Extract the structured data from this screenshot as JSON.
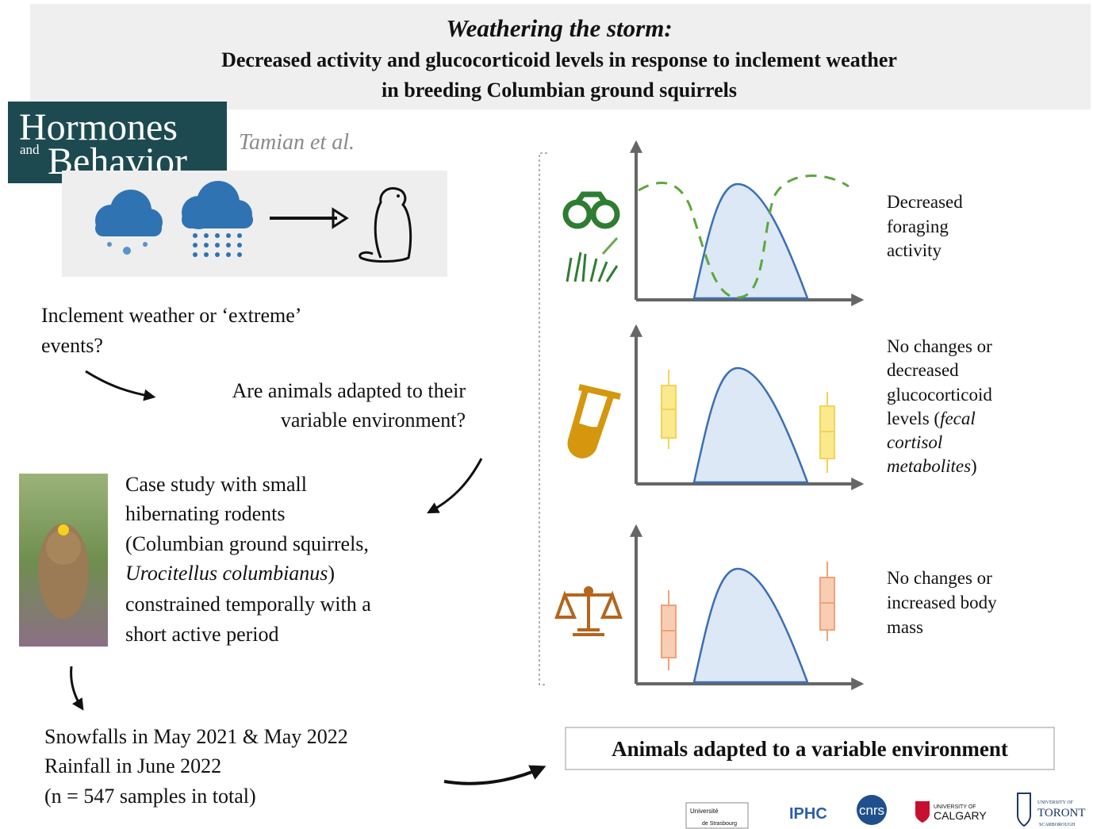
{
  "header": {
    "title": "Weathering the storm:",
    "subtitle_lines": [
      "Decreased activity and glucocorticoid levels in response to inclement weather",
      "in breeding Columbian ground squirrels"
    ]
  },
  "journal": {
    "line1": "Hormones",
    "and": "and",
    "line2": "Behavior"
  },
  "authors": "Tamian et al.",
  "question": {
    "lines": [
      "Inclement weather or ‘extreme’",
      "events?"
    ]
  },
  "adaptation_question": {
    "lines": [
      "Are animals adapted to their",
      "variable environment?"
    ]
  },
  "case_study": {
    "lines": [
      "Case study with small",
      "hibernating rodents",
      "(Columbian ground squirrels,"
    ],
    "species": "Urocitellus columbianus",
    "species_close": ")",
    "more_lines": [
      "constrained temporally with a",
      "short active period"
    ]
  },
  "events": {
    "lines": [
      "Snowfalls in May 2021 & May 2022",
      "Rainfall in June 2022",
      "(n = 547 samples in total)"
    ]
  },
  "findings": [
    {
      "lines": [
        "Decreased",
        "foraging",
        "activity"
      ]
    },
    {
      "lines": [
        "No changes or",
        "decreased",
        "glucocorticoid",
        "levels ("
      ],
      "italic_lines": [
        "fecal",
        "cortisol",
        "metabolites"
      ],
      "close": ")"
    },
    {
      "lines": [
        "No changes or",
        "increased body",
        "mass"
      ]
    }
  ],
  "conclusion": "Animals adapted to a variable environment",
  "logos": {
    "strasbourg": [
      "Université",
      "de Strasbourg"
    ],
    "iphc": "IPHC",
    "cnrs": "cnrs",
    "calgary": [
      "UNIVERSITY OF",
      "CALGARY"
    ],
    "toronto": [
      "UNIVERSITY OF",
      "TORONT",
      "SCARBOROUGH"
    ]
  }
}
